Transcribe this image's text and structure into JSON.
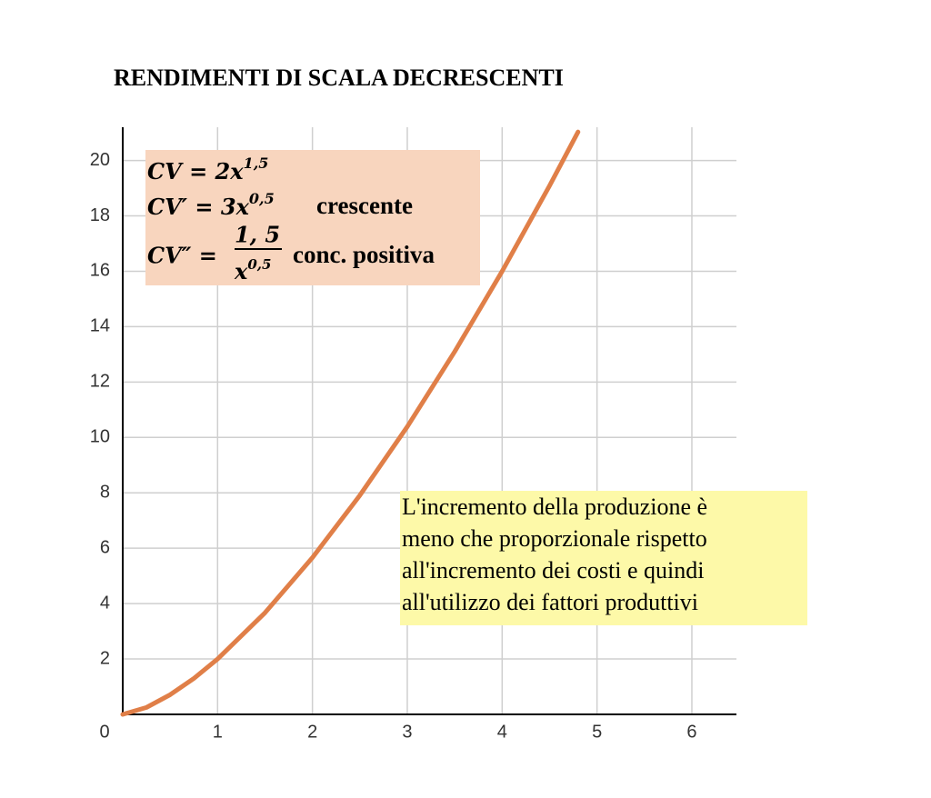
{
  "chart_data": {
    "type": "line",
    "title": "RENDIMENTI DI SCALA DECRESCENTI",
    "x": [
      0,
      0.25,
      0.5,
      0.75,
      1,
      1.5,
      2,
      2.5,
      3,
      3.5,
      4,
      4.5,
      4.8
    ],
    "series": [
      {
        "color": "#e07f48",
        "values": [
          0,
          0.25,
          0.71,
          1.3,
          2,
          3.67,
          5.66,
          7.91,
          10.39,
          13.1,
          16,
          19.09,
          21.03
        ]
      }
    ],
    "xlim": [
      0,
      6.47
    ],
    "ylim": [
      0,
      21.2
    ],
    "xticks": [
      0,
      1,
      2,
      3,
      4,
      5,
      6
    ],
    "yticks": [
      2,
      4,
      6,
      8,
      10,
      12,
      14,
      16,
      18,
      20
    ],
    "grid": true,
    "formulas": [
      {
        "text": "CV = 2x",
        "sup": "1,5"
      },
      {
        "text": "CV′ = 3x",
        "sup": "0,5",
        "note": "crescente"
      },
      {
        "text": "CV″ =",
        "num": "1, 5",
        "den": "x",
        "den_sup": "0,5",
        "note": "conc. positiva"
      }
    ],
    "note_lines": [
      "L'incremento della produzione è",
      "meno che proporzionale  rispetto",
      "all'incremento dei costi e quindi",
      "all'utilizzo dei fattori produttivi"
    ]
  }
}
